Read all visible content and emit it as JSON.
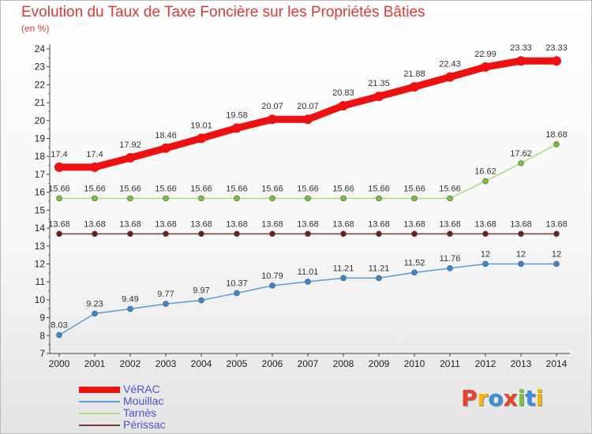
{
  "header": {
    "title": "Evolution du Taux de Taxe Foncière sur les Propriétés Bâties",
    "unit": "(en %)"
  },
  "logo": {
    "text": "Proxiti",
    "letters": [
      {
        "ch": "P",
        "color": "#e8432e"
      },
      {
        "ch": "r",
        "color": "#f5b800"
      },
      {
        "ch": "o",
        "color": "#3c8fd8"
      },
      {
        "ch": "x",
        "color": "#e8432e"
      },
      {
        "ch": "i",
        "color": "#7cc23d"
      },
      {
        "ch": "t",
        "color": "#3c8fd8"
      },
      {
        "ch": "i",
        "color": "#f5b800"
      }
    ]
  },
  "chart_data": {
    "type": "line",
    "title": "Evolution du Taux de Taxe Foncière sur les Propriétés Bâties",
    "ylabel": "(en %)",
    "xlabel": "",
    "x": [
      "2000",
      "2001",
      "2002",
      "2003",
      "2004",
      "2005",
      "2006",
      "2007",
      "2008",
      "2009",
      "2010",
      "2011",
      "2012",
      "2013",
      "2014"
    ],
    "ylim": [
      7,
      24
    ],
    "yticks": [
      7,
      8,
      9,
      10,
      11,
      12,
      13,
      14,
      15,
      16,
      17,
      18,
      19,
      20,
      21,
      22,
      23,
      24
    ],
    "grid": false,
    "legend_position": "bottom-left",
    "series": [
      {
        "name": "VéRAC",
        "color": "#ee1111",
        "values": [
          17.4,
          17.4,
          17.92,
          18.46,
          19.01,
          19.58,
          20.07,
          20.07,
          20.83,
          21.35,
          21.88,
          22.43,
          22.99,
          23.33,
          23.33
        ],
        "labels": [
          "17.4",
          "17.4",
          "17.92",
          "18.46",
          "19.01",
          "19.58",
          "20.07",
          "20.07",
          "20.83",
          "21.35",
          "21.88",
          "22.43",
          "22.99",
          "23.33",
          "23.33"
        ]
      },
      {
        "name": "Mouillac",
        "color": "#5b9bd5",
        "values": [
          8.03,
          9.23,
          9.49,
          9.77,
          9.97,
          10.37,
          10.79,
          11.01,
          11.21,
          11.21,
          11.52,
          11.76,
          12,
          12,
          12
        ],
        "labels": [
          "8.03",
          "9.23",
          "9.49",
          "9.77",
          "9.97",
          "10.37",
          "10.79",
          "11.01",
          "11.21",
          "11.21",
          "11.52",
          "11.76",
          "12",
          "12",
          "12"
        ]
      },
      {
        "name": "Tarnès",
        "color": "#a8dd78",
        "values": [
          15.66,
          15.66,
          15.66,
          15.66,
          15.66,
          15.66,
          15.66,
          15.66,
          15.66,
          15.66,
          15.66,
          15.66,
          16.62,
          17.62,
          18.68
        ],
        "labels": [
          "15.66",
          "15.66",
          "15.66",
          "15.66",
          "15.66",
          "15.66",
          "15.66",
          "15.66",
          "15.66",
          "15.66",
          "15.66",
          "15.66",
          "16.62",
          "17.62",
          "18.68"
        ]
      },
      {
        "name": "Périssac",
        "color": "#7a3a3a",
        "values": [
          13.68,
          13.68,
          13.68,
          13.68,
          13.68,
          13.68,
          13.68,
          13.68,
          13.68,
          13.68,
          13.68,
          13.68,
          13.68,
          13.68,
          13.68
        ],
        "labels": [
          "13.68",
          "13.68",
          "13.68",
          "13.68",
          "13.68",
          "13.68",
          "13.68",
          "13.68",
          "13.68",
          "13.68",
          "13.68",
          "13.68",
          "13.68",
          "13.68",
          "13.68"
        ]
      }
    ]
  }
}
